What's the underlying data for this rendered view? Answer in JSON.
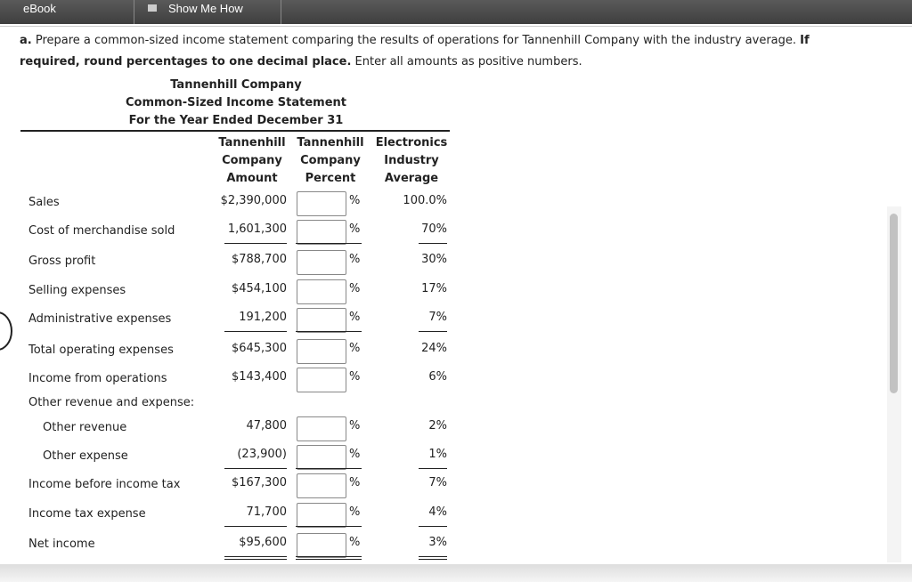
{
  "tabs": [
    "eBook",
    "Show Me How"
  ],
  "instructions": {
    "label": "a.",
    "text": "Prepare a common-sized income statement comparing the results of operations for Tannenhill Company with the industry average.",
    "bold": "If required, round percentages to one decimal place.",
    "tail": "Enter all amounts as positive numbers."
  },
  "statement": {
    "company": "Tannenhill Company",
    "title": "Common-Sized Income Statement",
    "period": "For the Year Ended December 31"
  },
  "columns": [
    [
      "Tannenhill",
      "Company",
      "Amount"
    ],
    [
      "Tannenhill",
      "Company",
      "Percent"
    ],
    [
      "Electronics",
      "Industry",
      "Average"
    ]
  ],
  "percent_sign": "%",
  "rows": [
    {
      "label": "Sales",
      "amount": "$2,390,000",
      "industry": "100.0%"
    },
    {
      "label": "Cost of merchandise sold",
      "amount": "1,601,300",
      "industry": "70%",
      "rule": "single"
    },
    {
      "label": "Gross profit",
      "amount": "$788,700",
      "industry": "30%"
    },
    {
      "label": "Selling expenses",
      "amount": "$454,100",
      "industry": "17%"
    },
    {
      "label": "Administrative expenses",
      "amount": "191,200",
      "industry": "7%",
      "rule": "single"
    },
    {
      "label": "Total operating expenses",
      "amount": "$645,300",
      "industry": "24%"
    },
    {
      "label": "Income from operations",
      "amount": "$143,400",
      "industry": "6%"
    },
    {
      "label": "Other revenue and expense:"
    },
    {
      "label": "Other revenue",
      "amount": "47,800",
      "industry": "2%",
      "indent": true
    },
    {
      "label": "Other expense",
      "amount": "(23,900)",
      "industry": "1%",
      "indent": true,
      "rule": "single"
    },
    {
      "label": "Income before income tax",
      "amount": "$167,300",
      "industry": "7%"
    },
    {
      "label": "Income tax expense",
      "amount": "71,700",
      "industry": "4%",
      "rule": "single"
    },
    {
      "label": "Net income",
      "amount": "$95,600",
      "industry": "3%",
      "rule": "double"
    }
  ]
}
